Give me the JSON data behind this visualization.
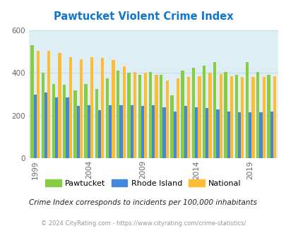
{
  "title": "Pawtucket Violent Crime Index",
  "years": [
    1999,
    2000,
    2001,
    2002,
    2003,
    2004,
    2005,
    2006,
    2007,
    2008,
    2009,
    2010,
    2011,
    2012,
    2013,
    2014,
    2015,
    2016,
    2017,
    2018,
    2019,
    2020,
    2021
  ],
  "pawtucket": [
    530,
    400,
    350,
    345,
    320,
    350,
    325,
    375,
    410,
    400,
    390,
    405,
    390,
    295,
    410,
    425,
    435,
    450,
    405,
    390,
    450,
    405,
    390
  ],
  "rhode_island": [
    300,
    310,
    285,
    285,
    245,
    250,
    225,
    250,
    250,
    250,
    245,
    250,
    240,
    220,
    245,
    240,
    235,
    230,
    220,
    215,
    215,
    215,
    220
  ],
  "national": [
    505,
    505,
    495,
    475,
    465,
    475,
    470,
    460,
    430,
    405,
    400,
    390,
    365,
    375,
    380,
    385,
    400,
    395,
    385,
    380,
    380,
    380,
    385
  ],
  "pawtucket_color": "#88cc44",
  "rhode_island_color": "#4488dd",
  "national_color": "#ffbb33",
  "bg_color": "#ddeef5",
  "ylim": [
    0,
    600
  ],
  "yticks": [
    0,
    200,
    400,
    600
  ],
  "xlabel_ticks": [
    1999,
    2004,
    2009,
    2014,
    2019
  ],
  "legend_labels": [
    "Pawtucket",
    "Rhode Island",
    "National"
  ],
  "subtitle": "Crime Index corresponds to incidents per 100,000 inhabitants",
  "footer": "© 2024 CityRating.com - https://www.cityrating.com/crime-statistics/",
  "title_color": "#1177cc",
  "subtitle_color": "#222222",
  "footer_color": "#999999",
  "grid_color": "#c8dde5"
}
